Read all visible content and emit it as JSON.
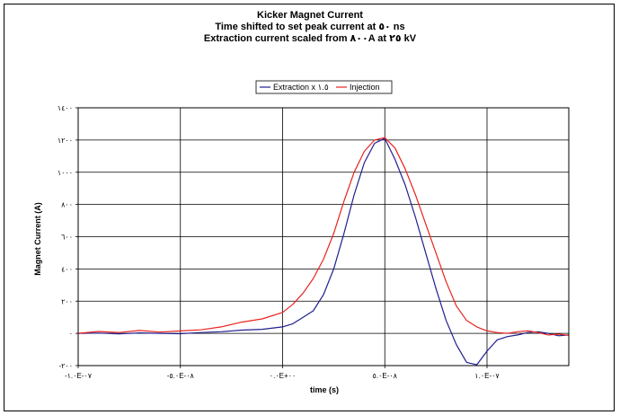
{
  "chart_data": {
    "type": "line",
    "title_lines": [
      "Kicker Magnet Current",
      "Time shifted to set peak current at ٥٠ ns",
      "Extraction current scaled from ٨٠٠A at ٢٥ kV"
    ],
    "xlabel": "time (s)",
    "ylabel": "Magnet Current (A)",
    "xlim": [
      -1e-07,
      1.4e-07
    ],
    "ylim": [
      -200,
      1400
    ],
    "x_ticks": [
      {
        "value": -1e-07,
        "label": "-١.٠E-٠٧"
      },
      {
        "value": -5e-08,
        "label": "-٥.٠E-٠٨"
      },
      {
        "value": 0,
        "label": "٠.٠E+٠٠"
      },
      {
        "value": 5e-08,
        "label": "٥.٠E-٠٨"
      },
      {
        "value": 1e-07,
        "label": "١.٠E-٠٧"
      }
    ],
    "y_ticks": [
      {
        "value": -200,
        "label": "-٢٠٠"
      },
      {
        "value": 0,
        "label": "٠"
      },
      {
        "value": 200,
        "label": "٢٠٠"
      },
      {
        "value": 400,
        "label": "٤٠٠"
      },
      {
        "value": 600,
        "label": "٦٠٠"
      },
      {
        "value": 800,
        "label": "٨٠٠"
      },
      {
        "value": 1000,
        "label": "١٠٠٠"
      },
      {
        "value": 1200,
        "label": "١٢٠٠"
      },
      {
        "value": 1400,
        "label": "١٤٠٠"
      }
    ],
    "grid": true,
    "legend": "top-center",
    "series": [
      {
        "name": "Extraction x ١.٥",
        "color": "#1f1f8f",
        "x": [
          -1e-07,
          -9e-08,
          -8e-08,
          -7e-08,
          -6e-08,
          -5e-08,
          -4e-08,
          -3e-08,
          -2e-08,
          -1e-08,
          0,
          5e-09,
          1e-08,
          1.5e-08,
          2e-08,
          2.5e-08,
          3e-08,
          3.5e-08,
          4e-08,
          4.5e-08,
          5e-08,
          5.5e-08,
          6e-08,
          6.5e-08,
          7e-08,
          7.5e-08,
          8e-08,
          8.5e-08,
          9e-08,
          9.5e-08,
          1e-07,
          1.05e-07,
          1.1e-07,
          1.15e-07,
          1.2e-07,
          1.25e-07,
          1.3e-07,
          1.35e-07,
          1.4e-07
        ],
        "values": [
          0,
          2,
          -3,
          3,
          0,
          -2,
          5,
          10,
          20,
          25,
          40,
          60,
          100,
          140,
          240,
          400,
          620,
          860,
          1060,
          1180,
          1210,
          1080,
          920,
          720,
          500,
          280,
          80,
          -70,
          -180,
          -195,
          -110,
          -40,
          -20,
          -10,
          5,
          10,
          0,
          -15,
          -10
        ]
      },
      {
        "name": "Injection",
        "color": "#e8231f",
        "x": [
          -1e-07,
          -9e-08,
          -8e-08,
          -7e-08,
          -6e-08,
          -5e-08,
          -4e-08,
          -3e-08,
          -2e-08,
          -1e-08,
          0,
          5e-09,
          1e-08,
          1.5e-08,
          2e-08,
          2.5e-08,
          3e-08,
          3.5e-08,
          4e-08,
          4.5e-08,
          5e-08,
          5.5e-08,
          6e-08,
          6.5e-08,
          7e-08,
          7.5e-08,
          8e-08,
          8.5e-08,
          9e-08,
          9.5e-08,
          1e-07,
          1.05e-07,
          1.1e-07,
          1.15e-07,
          1.2e-07,
          1.25e-07,
          1.3e-07,
          1.35e-07,
          1.4e-07
        ],
        "values": [
          0,
          12,
          5,
          18,
          8,
          15,
          22,
          40,
          70,
          90,
          130,
          180,
          250,
          340,
          460,
          620,
          820,
          1000,
          1130,
          1200,
          1215,
          1150,
          1020,
          860,
          680,
          500,
          320,
          170,
          80,
          40,
          15,
          5,
          0,
          10,
          15,
          5,
          -10,
          -5,
          -12
        ]
      }
    ]
  }
}
